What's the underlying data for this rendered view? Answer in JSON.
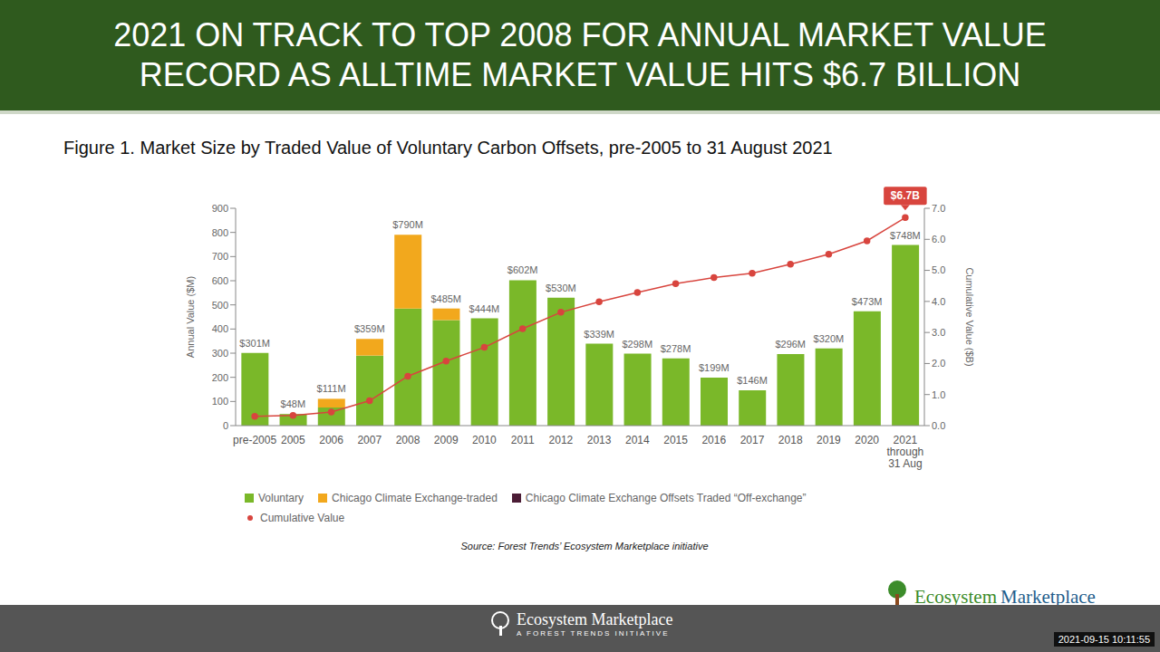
{
  "header": {
    "title_lines": [
      "2021 ON TRACK TO TOP 2008 FOR ANNUAL MARKET VALUE",
      "RECORD AS ALLTIME MARKET VALUE HITS $6.7 BILLION"
    ]
  },
  "chart_data": {
    "type": "bar",
    "title": "Figure 1. Market Size by Traded Value of Voluntary Carbon Offsets, pre-2005 to 31 August 2021",
    "categories": [
      "pre-2005",
      "2005",
      "2006",
      "2007",
      "2008",
      "2009",
      "2010",
      "2011",
      "2012",
      "2013",
      "2014",
      "2015",
      "2016",
      "2017",
      "2018",
      "2019",
      "2020",
      "2021 through 31 Aug"
    ],
    "stacked": true,
    "grid": false,
    "legend": "bottom",
    "data_labels": true,
    "ylabel": "Annual Value ($M)",
    "y2label": "Cumulative Value ($B)",
    "ylim": [
      0,
      900
    ],
    "yticks": [
      0,
      100,
      200,
      300,
      400,
      500,
      600,
      700,
      800,
      900
    ],
    "y2lim": [
      0,
      7
    ],
    "y2ticks": [
      {
        "value": 0,
        "label": "0.0"
      },
      {
        "value": 1,
        "label": "1.0"
      },
      {
        "value": 2,
        "label": "2.0"
      },
      {
        "value": 3,
        "label": "3.0"
      },
      {
        "value": 4,
        "label": "4.0"
      },
      {
        "value": 5,
        "label": "5.0"
      },
      {
        "value": 6,
        "label": "6.0"
      },
      {
        "value": 7,
        "label": "7.0"
      }
    ],
    "series": [
      {
        "name": "Voluntary",
        "type": "bar",
        "color": "#7ab829",
        "values": [
          301,
          48,
          75,
          290,
          485,
          437,
          444,
          602,
          530,
          339,
          298,
          278,
          199,
          146,
          296,
          320,
          473,
          748
        ]
      },
      {
        "name": "Chicago Climate Exchange-traded",
        "type": "bar",
        "color": "#f2a81d",
        "values": [
          0,
          0,
          36,
          69,
          305,
          48,
          0,
          0,
          0,
          0,
          0,
          0,
          0,
          0,
          0,
          0,
          0,
          0
        ]
      },
      {
        "name": "Chicago Climate Exchange Offsets Traded “Off-exchange”",
        "type": "bar",
        "color": "#4b1c35",
        "values": [
          0,
          0,
          0,
          0,
          0,
          0,
          0,
          0,
          0,
          0,
          0,
          0,
          0,
          0,
          0,
          0,
          0,
          0
        ]
      },
      {
        "name": "Cumulative Value",
        "type": "line",
        "axis": "y2",
        "color": "#d8453e",
        "marker": "circle",
        "values": [
          0.3,
          0.33,
          0.44,
          0.8,
          1.59,
          2.08,
          2.52,
          3.12,
          3.65,
          3.99,
          4.29,
          4.57,
          4.77,
          4.91,
          5.2,
          5.52,
          5.95,
          6.7
        ]
      }
    ],
    "totals": {
      "values": [
        301,
        48,
        111,
        359,
        790,
        485,
        444,
        602,
        530,
        339,
        298,
        278,
        199,
        146,
        296,
        320,
        473,
        748
      ],
      "value_labels": [
        "$301M",
        "$48M",
        "$111M",
        "$359M",
        "$790M",
        "$485M",
        "$444M",
        "$602M",
        "$530M",
        "$339M",
        "$298M",
        "$278M",
        "$199M",
        "$146M",
        "$296M",
        "$320M",
        "$473M",
        "$748M"
      ]
    },
    "annotation": {
      "text": "$6.7B",
      "value": 6.7
    },
    "source": "Source: Forest Trends’ Ecosystem Marketplace initiative"
  },
  "logo": {
    "left": "Ecosystem",
    "right": "Marketplace"
  },
  "footer": {
    "name": "Ecosystem Marketplace",
    "tagline": "A FOREST TRENDS INITIATIVE",
    "timestamp": "2021-09-15 10:11:55"
  }
}
